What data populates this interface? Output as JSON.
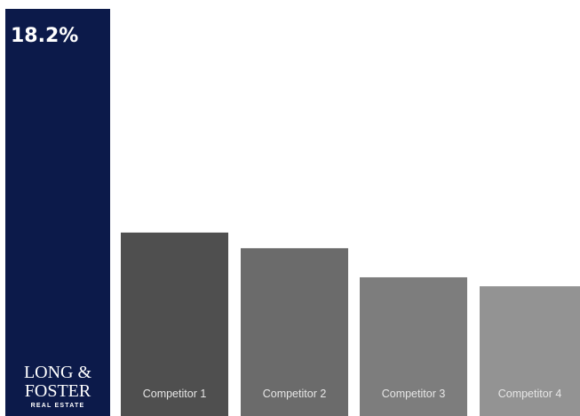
{
  "chart_data": {
    "type": "bar",
    "categories": [
      "Long & Foster",
      "Competitor 1",
      "Competitor 2",
      "Competitor 3",
      "Competitor 4"
    ],
    "values": [
      18.2,
      8.2,
      7.5,
      6.2,
      5.8
    ],
    "value_labels": [
      "18.2%",
      "",
      "",
      "",
      ""
    ],
    "category_labels": [
      "",
      "Competitor 1",
      "Competitor 2",
      "Competitor 3",
      "Competitor 4"
    ],
    "title": "",
    "xlabel": "",
    "ylabel": "",
    "ylim": [
      0,
      18.2
    ],
    "grid": false,
    "colors": [
      "#0c1a4a",
      "#4f4f4f",
      "#6b6b6b",
      "#7d7d7d",
      "#939393"
    ]
  },
  "logo": {
    "line1": "LONG &",
    "line2": "FOSTER",
    "line3": "REAL ESTATE"
  },
  "colors": {
    "background": "#ffffff",
    "brand": "#0c1a4a",
    "label_text": "#e6e6e6"
  }
}
